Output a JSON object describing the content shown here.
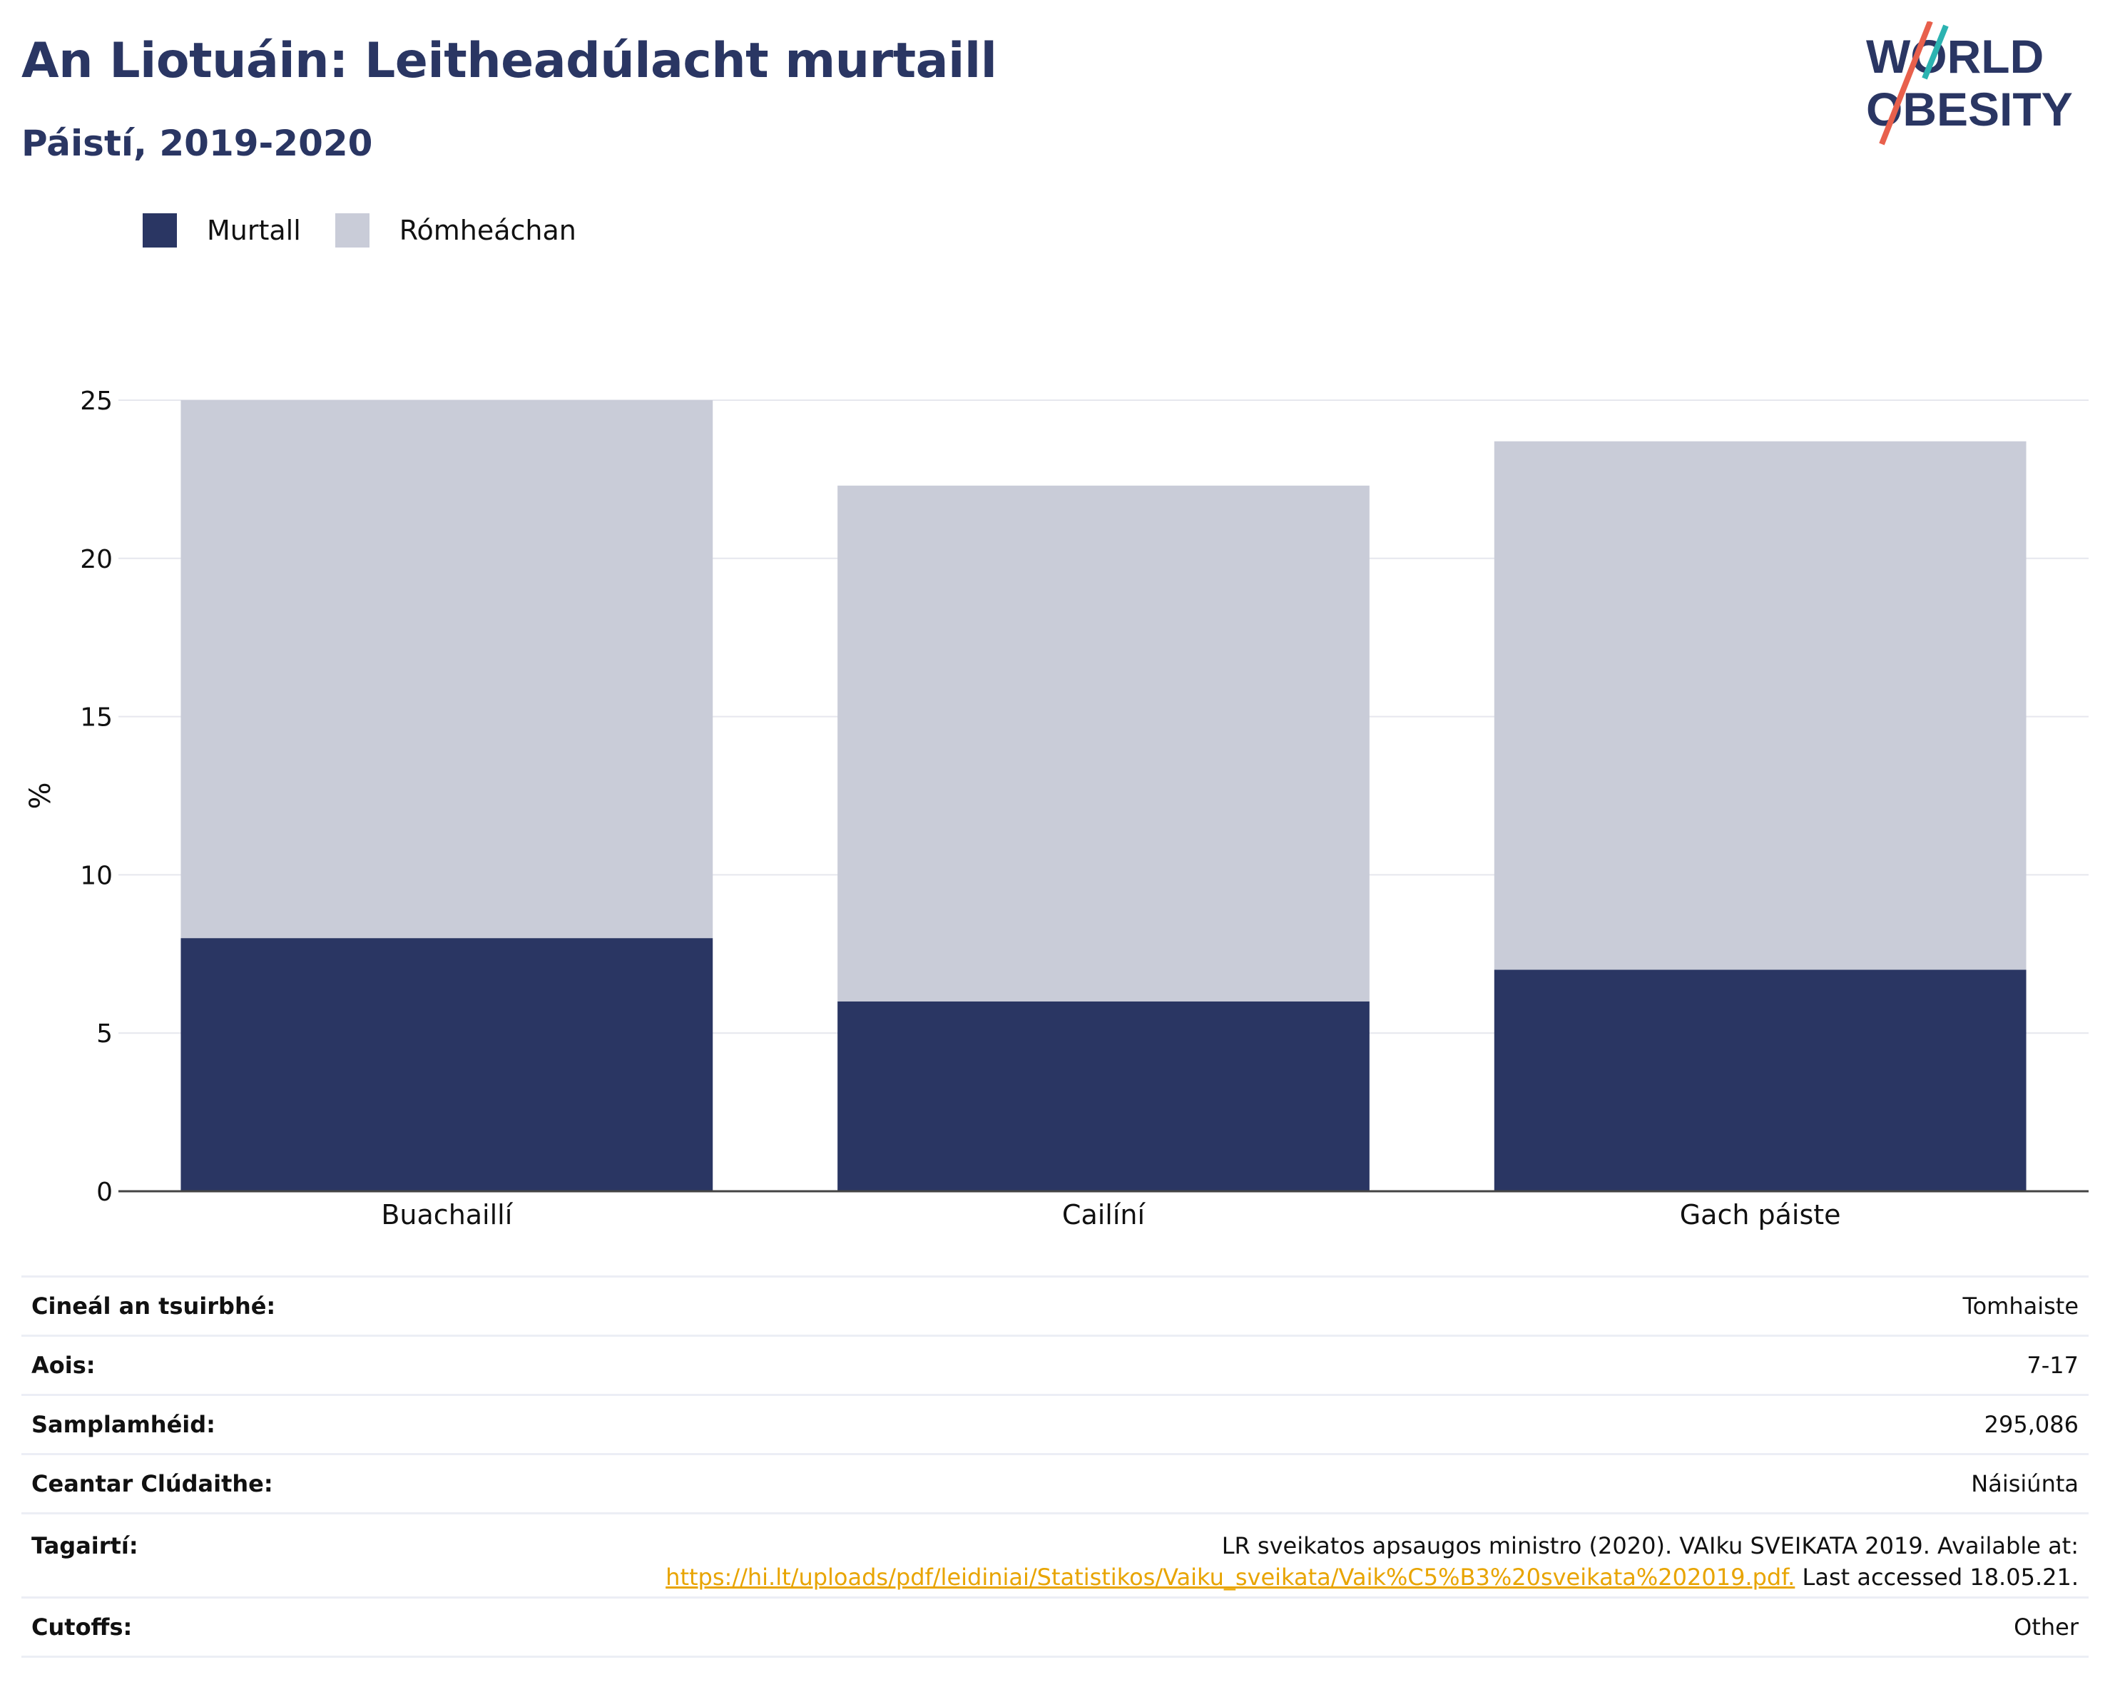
{
  "title": "An Liotuáin: Leitheadúlacht murtaill",
  "subtitle": "Páistí, 2019-2020",
  "logo": {
    "line1": "WORLD",
    "line2": "OBESITY"
  },
  "colors": {
    "obese": "#2a3663",
    "overweight": "#c9ccd8",
    "accent_teal": "#2bb3b1",
    "accent_red": "#e8604c",
    "link": "#e8a400"
  },
  "chart_data": {
    "type": "bar",
    "stacked": true,
    "categories": [
      "Buachaillí",
      "Cailíní",
      "Gach páiste"
    ],
    "series": [
      {
        "name": "Murtall",
        "values": [
          8,
          6,
          7
        ]
      },
      {
        "name": "Rómheáchan",
        "values": [
          17,
          16.3,
          16.7
        ]
      }
    ],
    "ylabel": "%",
    "xlabel": "",
    "ylim": [
      0,
      25
    ],
    "yticks": [
      0,
      5,
      10,
      15,
      20,
      25
    ],
    "grid": true,
    "legend_position": "top-left"
  },
  "meta": {
    "survey_type": {
      "label": "Cineál an tsuirbhé:",
      "value": "Tomhaiste"
    },
    "age": {
      "label": "Aois:",
      "value": "7-17"
    },
    "sample_size": {
      "label": "Samplamhéid:",
      "value": "295,086"
    },
    "coverage": {
      "label": "Ceantar Clúdaithe:",
      "value": "Náisiúnta"
    },
    "references": {
      "label": "Tagairtí:",
      "text": "LR sveikatos apsaugos ministro (2020). VAIku SVEIKATA 2019. Available at:",
      "link": "https://hi.lt/uploads/pdf/leidiniai/Statistikos/Vaiku_sveikata/Vaik%C5%B3%20sveikata%202019.pdf.",
      "suffix": " Last accessed 18.05.21."
    },
    "cutoffs": {
      "label": "Cutoffs:",
      "value": "Other"
    }
  }
}
